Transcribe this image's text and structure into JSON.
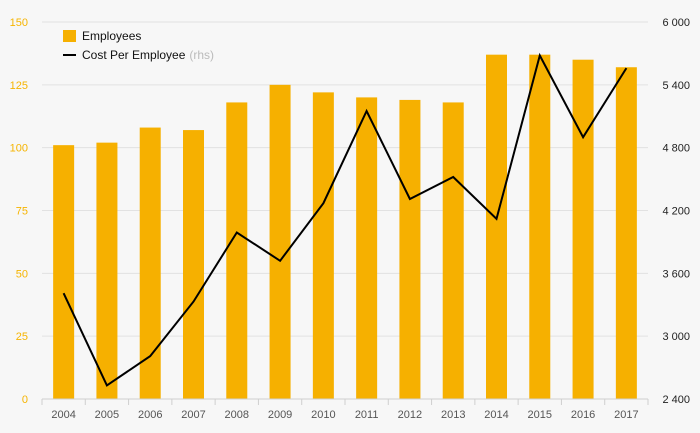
{
  "chart_data": {
    "type": "bar",
    "categories": [
      "2004",
      "2005",
      "2006",
      "2007",
      "2008",
      "2009",
      "2010",
      "2011",
      "2012",
      "2013",
      "2014",
      "2015",
      "2016",
      "2017"
    ],
    "series": [
      {
        "name": "Employees",
        "type": "bar",
        "axis": "left",
        "color": "#f6b000",
        "values": [
          101,
          102,
          108,
          107,
          118,
          125,
          122,
          120,
          119,
          118,
          137,
          137,
          135,
          132
        ]
      },
      {
        "name": "Cost Per Employee",
        "type": "line",
        "axis": "right",
        "color": "#000000",
        "values": [
          3410,
          2530,
          2810,
          3330,
          3990,
          3720,
          4270,
          5150,
          4310,
          4520,
          4120,
          5680,
          4900,
          5560
        ]
      }
    ],
    "legend": {
      "position": "top-left",
      "items": [
        {
          "label": "Employees",
          "suffix": ""
        },
        {
          "label": "Cost Per Employee",
          "suffix": "(rhs)"
        }
      ]
    },
    "y_left": {
      "min": 0,
      "max": 150,
      "ticks": [
        "0",
        "25",
        "50",
        "75",
        "100",
        "125",
        "150"
      ],
      "color": "#f6b400"
    },
    "y_right": {
      "min": 2400,
      "max": 6000,
      "ticks": [
        "2 400",
        "3 000",
        "3 600",
        "4 200",
        "4 800",
        "5 400",
        "6 000"
      ],
      "color": "#222222"
    },
    "grid": true
  }
}
